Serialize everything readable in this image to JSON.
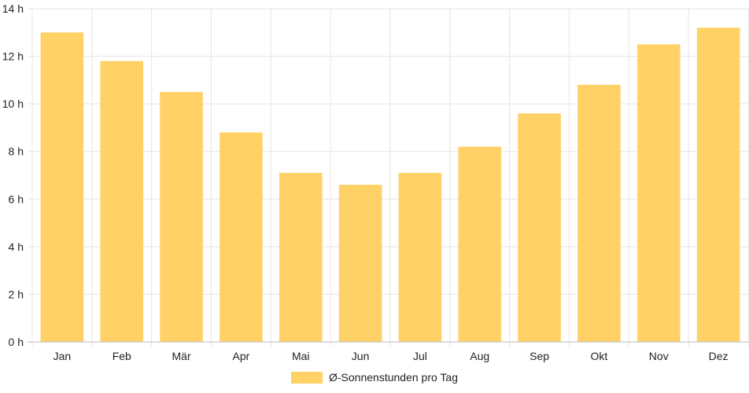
{
  "chart_data": {
    "type": "bar",
    "categories": [
      "Jan",
      "Feb",
      "Mär",
      "Apr",
      "Mai",
      "Jun",
      "Jul",
      "Aug",
      "Sep",
      "Okt",
      "Nov",
      "Dez"
    ],
    "series": [
      {
        "name": "Ø-Sonnenstunden pro Tag",
        "values": [
          13.0,
          11.8,
          10.5,
          8.8,
          7.1,
          6.6,
          7.1,
          8.2,
          9.6,
          10.8,
          12.5,
          13.2
        ]
      }
    ],
    "y_ticks": [
      "0 h",
      "2 h",
      "4 h",
      "6 h",
      "8 h",
      "10 h",
      "12 h",
      "14 h"
    ],
    "ylim": [
      0,
      14
    ],
    "grid": true,
    "legend_position": "bottom",
    "colors": {
      "bar": "#ffd166",
      "grid": "#e5e5e5",
      "axis": "#bdbdbd"
    }
  }
}
